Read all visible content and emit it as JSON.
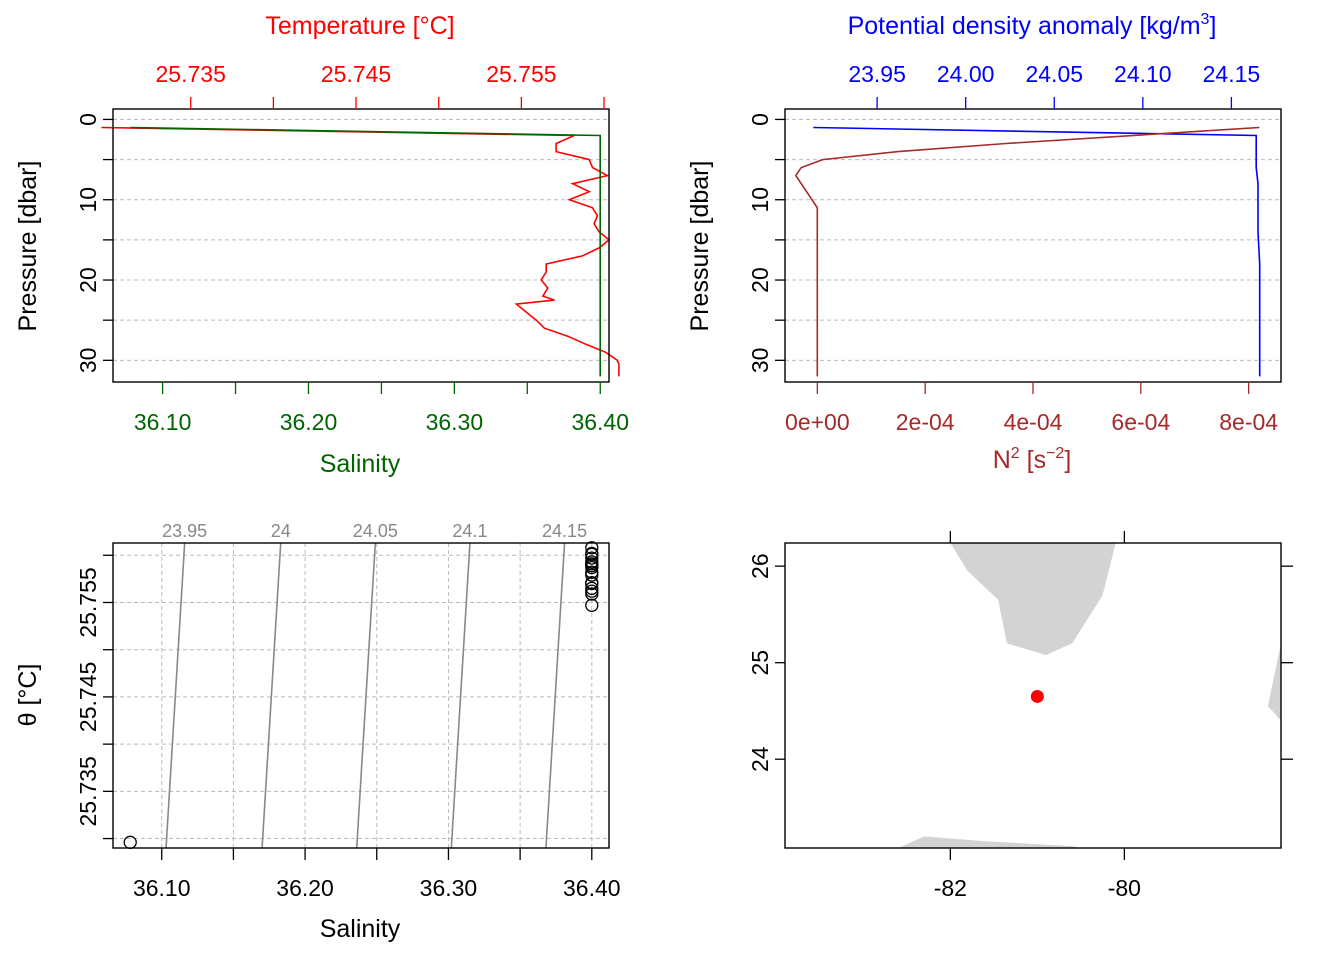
{
  "colors": {
    "temperature": "#ff0000",
    "salinity": "#006400",
    "density": "#0000ff",
    "n2": "#a52a2a",
    "isopycnal": "#888888",
    "grid": "#bbbbbb",
    "land": "#d3d3d3",
    "station": "#ff0000",
    "axis": "#000000"
  },
  "chart_data": [
    {
      "type": "line",
      "panel": "profile-ts",
      "ylabel": "Pressure [dbar]",
      "ylim": [
        32.7,
        -1.3
      ],
      "yticks": [
        "0",
        "10",
        "20",
        "30"
      ],
      "grid": true,
      "series": [
        {
          "name": "Temperature [°C]",
          "axis": "top",
          "xlabel": "Temperature [°C]",
          "xlim": [
            25.7303,
            25.7603
          ],
          "xticks": [
            "25.735",
            "25.745",
            "25.755"
          ],
          "x": [
            25.7296,
            25.7582,
            25.7571,
            25.7571,
            25.7591,
            25.7593,
            25.7602,
            25.7581,
            25.7591,
            25.7579,
            25.7593,
            25.7596,
            25.7594,
            25.7597,
            25.7603,
            25.7597,
            25.7587,
            25.7565,
            25.7565,
            25.7562,
            25.7566,
            25.7563,
            25.757,
            25.7547,
            25.7559,
            25.7564,
            25.7578,
            25.7589,
            25.7601,
            25.7608,
            25.7609,
            25.7609,
            25.7609
          ],
          "y": [
            1,
            2,
            3,
            4,
            5,
            6,
            7,
            8,
            9,
            10,
            11,
            12,
            13,
            14,
            15,
            16,
            17,
            18,
            19,
            20,
            21,
            22,
            22.5,
            23,
            25,
            26,
            27,
            28,
            29,
            30,
            30.5,
            31,
            32
          ]
        },
        {
          "name": "Salinity",
          "axis": "bottom",
          "xlabel": "Salinity",
          "xlim": [
            36.066,
            36.406
          ],
          "xticks": [
            "36.10",
            "36.20",
            "36.30",
            "36.40"
          ],
          "x": [
            36.078,
            36.4,
            36.4,
            36.4,
            36.4,
            36.4,
            36.4,
            36.4,
            36.4,
            36.4,
            36.4,
            36.4,
            36.4,
            36.4,
            36.4
          ],
          "y": [
            1,
            2,
            4,
            6,
            8,
            10,
            12,
            14,
            16,
            18,
            20,
            22,
            25,
            28,
            32
          ]
        }
      ]
    },
    {
      "type": "line",
      "panel": "profile-density",
      "ylabel": "Pressure [dbar]",
      "ylim": [
        32.7,
        -1.3
      ],
      "yticks": [
        "0",
        "10",
        "20",
        "30"
      ],
      "grid": true,
      "series": [
        {
          "name": "Potential density anomaly [kg/m3]",
          "axis": "top",
          "xlabel": "Potential density anomaly [kg/m3]",
          "xlim": [
            23.898,
            24.178
          ],
          "xticks": [
            "23.95",
            "24.00",
            "24.05",
            "24.10",
            "24.15"
          ],
          "x": [
            23.914,
            24.164,
            24.164,
            24.164,
            24.165,
            24.165,
            24.165,
            24.166,
            24.166,
            24.166,
            24.166,
            24.166
          ],
          "y": [
            1,
            2,
            4,
            6,
            8,
            10,
            14,
            18,
            22,
            26,
            30,
            32
          ]
        },
        {
          "name": "N2 [s-2]",
          "axis": "bottom",
          "xlabel": "N2 [s-2]",
          "xlim": [
            -6e-05,
            0.00086
          ],
          "xticks": [
            "0e+00",
            "2e-04",
            "4e-04",
            "6e-04",
            "8e-04"
          ],
          "x": [
            0.00082,
            0.00035,
            0.00015,
            1e-05,
            -3e-05,
            -4e-05,
            -2e-05,
            0.0,
            0.0,
            0.0,
            0.0,
            0.0
          ],
          "y": [
            1,
            3,
            4,
            5,
            6,
            7,
            9,
            11,
            15,
            20,
            25,
            32
          ]
        }
      ]
    },
    {
      "type": "scatter",
      "panel": "ts-diagram",
      "xlabel": "Salinity",
      "ylabel": "θ [°C]",
      "xlim": [
        36.066,
        36.412
      ],
      "ylim": [
        25.729,
        25.7613
      ],
      "xticks": [
        "36.10",
        "36.20",
        "36.30",
        "36.40"
      ],
      "yticks": [
        "25.735",
        "25.745",
        "25.755"
      ],
      "grid": true,
      "points": {
        "x": [
          36.078,
          36.4,
          36.4,
          36.4,
          36.4,
          36.4,
          36.4,
          36.4,
          36.4,
          36.4,
          36.4,
          36.4,
          36.4,
          36.4,
          36.4,
          36.4,
          36.4
        ],
        "y": [
          25.7296,
          25.7582,
          25.7571,
          25.7593,
          25.7591,
          25.7579,
          25.7602,
          25.7597,
          25.7587,
          25.7565,
          25.7562,
          25.7547,
          25.7559,
          25.757,
          25.7589,
          25.7601,
          25.7608
        ]
      },
      "isopycnals": [
        {
          "label": "23.95",
          "x_top": 36.116,
          "x_bottom": 36.103
        },
        {
          "label": "24",
          "x_top": 36.183,
          "x_bottom": 36.17
        },
        {
          "label": "24.05",
          "x_top": 36.249,
          "x_bottom": 36.236
        },
        {
          "label": "24.1",
          "x_top": 36.315,
          "x_bottom": 36.302
        },
        {
          "label": "24.15",
          "x_top": 36.381,
          "x_bottom": 36.368
        }
      ]
    },
    {
      "type": "map",
      "panel": "station-map",
      "xlim": [
        -83.9,
        -78.2
      ],
      "ylim": [
        23.08,
        26.24
      ],
      "xticks": [
        "-82",
        "-80"
      ],
      "yticks": [
        "24",
        "25",
        "26"
      ],
      "station": {
        "lon": -81.0,
        "lat": 24.65
      },
      "land": [
        [
          [
            -82.0,
            26.24
          ],
          [
            -81.8,
            25.95
          ],
          [
            -81.45,
            25.65
          ],
          [
            -81.35,
            25.2
          ],
          [
            -80.9,
            25.08
          ],
          [
            -80.6,
            25.2
          ],
          [
            -80.25,
            25.7
          ],
          [
            -80.1,
            26.24
          ]
        ],
        [
          [
            -78.2,
            25.2
          ],
          [
            -78.35,
            24.55
          ],
          [
            -78.2,
            24.4
          ]
        ],
        [
          [
            -82.6,
            23.08
          ],
          [
            -82.3,
            23.2
          ],
          [
            -81.6,
            23.15
          ],
          [
            -80.6,
            23.1
          ],
          [
            -80.5,
            23.08
          ]
        ]
      ]
    }
  ]
}
